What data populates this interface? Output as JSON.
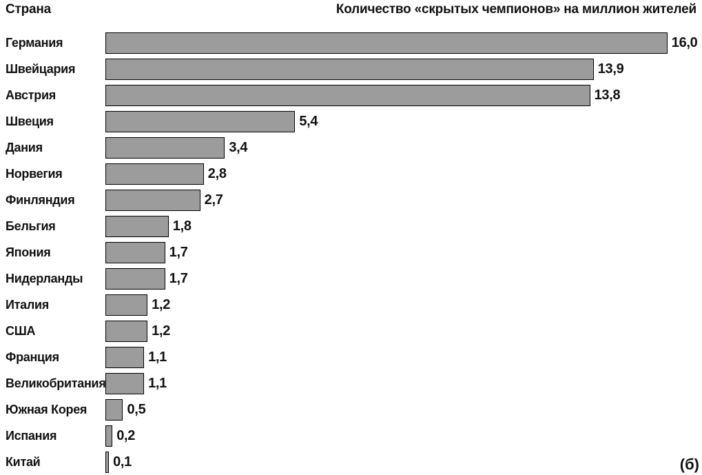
{
  "header": {
    "left": "Страна",
    "right": "Количество «скрытых чемпионов» на миллион жителей"
  },
  "figure_label": "(б)",
  "chart_data": {
    "type": "bar",
    "orientation": "horizontal",
    "title": "Количество «скрытых чемпионов» на миллион жителей",
    "xlabel": "Количество «скрытых чемпионов» на миллион жителей",
    "ylabel": "Страна",
    "categories": [
      "Германия",
      "Швейцария",
      "Австрия",
      "Швеция",
      "Дания",
      "Норвегия",
      "Финляндия",
      "Бельгия",
      "Япония",
      "Нидерланды",
      "Италия",
      "США",
      "Франция",
      "Великобритания",
      "Южная Корея",
      "Испания",
      "Китай"
    ],
    "values": [
      16.0,
      13.9,
      13.8,
      5.4,
      3.4,
      2.8,
      2.7,
      1.8,
      1.7,
      1.7,
      1.2,
      1.2,
      1.1,
      1.1,
      0.5,
      0.2,
      0.1
    ],
    "value_labels": [
      "16,0",
      "13,9",
      "13,8",
      "5,4",
      "3,4",
      "2,8",
      "2,7",
      "1,8",
      "1,7",
      "1,7",
      "1,2",
      "1,2",
      "1,1",
      "1,1",
      "0,5",
      "0,2",
      "0,1"
    ],
    "xlim": [
      0,
      16
    ],
    "grid": false,
    "legend": false,
    "bar_color": "#9c9c9c",
    "bar_border_color": "#000000",
    "text_color": "#111111"
  }
}
